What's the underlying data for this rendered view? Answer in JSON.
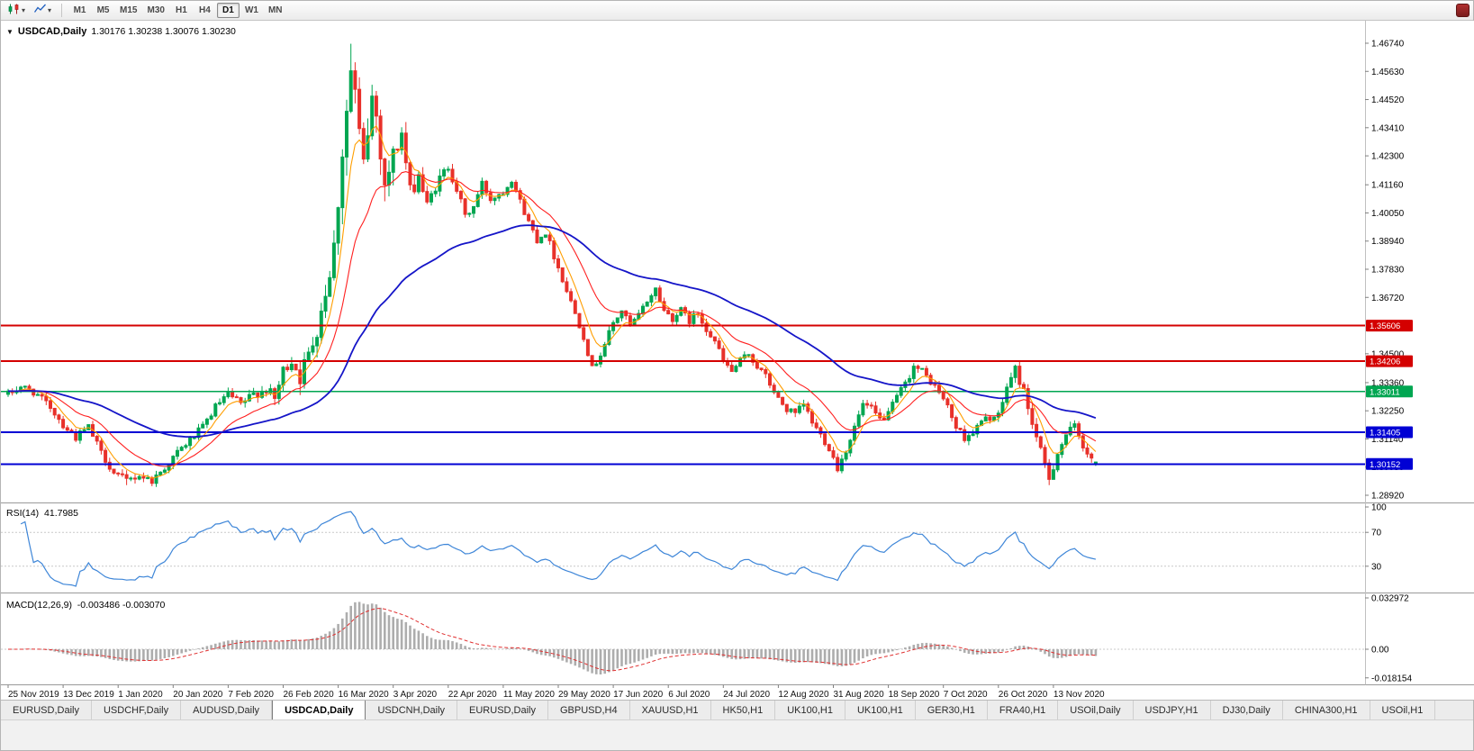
{
  "toolbar": {
    "timeframes": [
      "M1",
      "M5",
      "M15",
      "M30",
      "H1",
      "H4",
      "D1",
      "W1",
      "MN"
    ],
    "active_timeframe": "D1"
  },
  "chart": {
    "symbol": "USDCAD,Daily",
    "ohlc": "1.30176 1.30238 1.30076 1.30230"
  },
  "rsi": {
    "label": "RSI(14)",
    "value": "41.7985",
    "axis_labels": [
      "100",
      "70",
      "30"
    ],
    "levels": [
      70,
      30
    ],
    "line_color": "#3E86D8"
  },
  "macd": {
    "label": "MACD(12,26,9)",
    "values_text": "-0.003486 -0.003070",
    "axis_labels": [
      "0.032972",
      "0.00",
      "-0.018154"
    ],
    "histogram_color": "#ADADAD",
    "signal_color": "#E03030"
  },
  "price_axis": {
    "labels": [
      "1.46740",
      "1.45630",
      "1.44520",
      "1.43410",
      "1.42300",
      "1.41160",
      "1.40050",
      "1.38940",
      "1.37830",
      "1.36720",
      "1.34500",
      "1.33360",
      "1.32250",
      "1.31140",
      "1.30030",
      "1.28920"
    ],
    "badges": [
      {
        "text": "1.35606",
        "color": "#D40000"
      },
      {
        "text": "1.34206",
        "color": "#D40000"
      },
      {
        "text": "1.33011",
        "color": "#00A651"
      },
      {
        "text": "1.31405",
        "color": "#0000D4"
      },
      {
        "text": "1.30152",
        "color": "#0000D4"
      }
    ]
  },
  "time_axis": {
    "labels": [
      "25 Nov 2019",
      "13 Dec 2019",
      "1 Jan 2020",
      "20 Jan 2020",
      "7 Feb 2020",
      "26 Feb 2020",
      "16 Mar 2020",
      "3 Apr 2020",
      "22 Apr 2020",
      "11 May 2020",
      "29 May 2020",
      "17 Jun 2020",
      "6 Jul 2020",
      "24 Jul 2020",
      "12 Aug 2020",
      "31 Aug 2020",
      "18 Sep 2020",
      "7 Oct 2020",
      "26 Oct 2020",
      "13 Nov 2020"
    ],
    "candles_per_label": 13
  },
  "tabbar": {
    "items": [
      "EURUSD,Daily",
      "USDCHF,Daily",
      "AUDUSD,Daily",
      "USDCAD,Daily",
      "USDCNH,Daily",
      "EURUSD,Daily",
      "GBPUSD,H4",
      "XAUUSD,H1",
      "HK50,H1",
      "UK100,H1",
      "UK100,H1",
      "GER30,H1",
      "FRA40,H1",
      "USOil,Daily",
      "USDJPY,H1",
      "DJ30,Daily",
      "CHINA300,H1",
      "USOil,H1"
    ],
    "active_index": 3
  },
  "chart_data": {
    "type": "candlestick",
    "symbol": "USDCAD",
    "timeframe": "Daily",
    "visible_price_range": [
      1.2892,
      1.4674
    ],
    "current_bar": {
      "open": 1.30176,
      "high": 1.30238,
      "low": 1.30076,
      "close": 1.3023
    },
    "num_candles": 258,
    "candle_colors": {
      "up": "#00A651",
      "down": "#E8312A"
    },
    "price_anchors": [
      [
        0,
        1.329
      ],
      [
        3,
        1.332
      ],
      [
        6,
        1.33
      ],
      [
        10,
        1.324
      ],
      [
        13,
        1.317
      ],
      [
        16,
        1.312
      ],
      [
        19,
        1.316
      ],
      [
        22,
        1.306
      ],
      [
        25,
        1.298
      ],
      [
        28,
        1.295
      ],
      [
        31,
        1.297
      ],
      [
        34,
        1.295
      ],
      [
        37,
        1.3
      ],
      [
        40,
        1.306
      ],
      [
        43,
        1.311
      ],
      [
        46,
        1.316
      ],
      [
        49,
        1.324
      ],
      [
        52,
        1.329
      ],
      [
        55,
        1.325
      ],
      [
        58,
        1.329
      ],
      [
        61,
        1.331
      ],
      [
        63,
        1.327
      ],
      [
        65,
        1.338
      ],
      [
        67,
        1.343
      ],
      [
        69,
        1.336
      ],
      [
        71,
        1.344
      ],
      [
        73,
        1.356
      ],
      [
        75,
        1.37
      ],
      [
        77,
        1.387
      ],
      [
        79,
        1.425
      ],
      [
        81,
        1.456
      ],
      [
        82,
        1.447
      ],
      [
        83,
        1.43
      ],
      [
        84,
        1.419
      ],
      [
        86,
        1.446
      ],
      [
        87,
        1.439
      ],
      [
        89,
        1.412
      ],
      [
        91,
        1.423
      ],
      [
        93,
        1.432
      ],
      [
        95,
        1.408
      ],
      [
        97,
        1.416
      ],
      [
        99,
        1.403
      ],
      [
        101,
        1.411
      ],
      [
        104,
        1.419
      ],
      [
        106,
        1.41
      ],
      [
        108,
        1.399
      ],
      [
        110,
        1.403
      ],
      [
        112,
        1.412
      ],
      [
        114,
        1.406
      ],
      [
        117,
        1.409
      ],
      [
        119,
        1.414
      ],
      [
        121,
        1.405
      ],
      [
        123,
        1.397
      ],
      [
        125,
        1.39
      ],
      [
        127,
        1.393
      ],
      [
        130,
        1.379
      ],
      [
        132,
        1.37
      ],
      [
        134,
        1.361
      ],
      [
        136,
        1.352
      ],
      [
        138,
        1.339
      ],
      [
        140,
        1.345
      ],
      [
        143,
        1.357
      ],
      [
        145,
        1.362
      ],
      [
        147,
        1.356
      ],
      [
        149,
        1.36
      ],
      [
        151,
        1.366
      ],
      [
        153,
        1.3705
      ],
      [
        155,
        1.362
      ],
      [
        157,
        1.359
      ],
      [
        159,
        1.362
      ],
      [
        161,
        1.358
      ],
      [
        163,
        1.361
      ],
      [
        165,
        1.355
      ],
      [
        167,
        1.35
      ],
      [
        169,
        1.342
      ],
      [
        171,
        1.338
      ],
      [
        173,
        1.342
      ],
      [
        175,
        1.345
      ],
      [
        177,
        1.34
      ],
      [
        179,
        1.336
      ],
      [
        182,
        1.327
      ],
      [
        184,
        1.323
      ],
      [
        186,
        1.321
      ],
      [
        188,
        1.325
      ],
      [
        190,
        1.318
      ],
      [
        192,
        1.313
      ],
      [
        194,
        1.308
      ],
      [
        196,
        1.3
      ],
      [
        198,
        1.307
      ],
      [
        200,
        1.316
      ],
      [
        202,
        1.325
      ],
      [
        204,
        1.323
      ],
      [
        206,
        1.319
      ],
      [
        208,
        1.321
      ],
      [
        210,
        1.328
      ],
      [
        212,
        1.333
      ],
      [
        214,
        1.34
      ],
      [
        216,
        1.338
      ],
      [
        218,
        1.334
      ],
      [
        220,
        1.33
      ],
      [
        222,
        1.324
      ],
      [
        224,
        1.316
      ],
      [
        226,
        1.312
      ],
      [
        228,
        1.314
      ],
      [
        230,
        1.318
      ],
      [
        232,
        1.32
      ],
      [
        234,
        1.32
      ],
      [
        236,
        1.332
      ],
      [
        238,
        1.339
      ],
      [
        240,
        1.33
      ],
      [
        242,
        1.318
      ],
      [
        244,
        1.306
      ],
      [
        246,
        1.296
      ],
      [
        248,
        1.306
      ],
      [
        250,
        1.313
      ],
      [
        252,
        1.316
      ],
      [
        254,
        1.309
      ],
      [
        256,
        1.304
      ],
      [
        257,
        1.3023
      ]
    ],
    "moving_averages": [
      {
        "name": "fast",
        "color": "#FF9E00",
        "alpha": 0.28
      },
      {
        "name": "medium",
        "color": "#FF2020",
        "alpha": 0.11
      },
      {
        "name": "slow",
        "color": "#1515C8",
        "alpha": 0.034
      }
    ],
    "horizontal_lines": [
      {
        "price": 1.35606,
        "color": "#D40000",
        "width": 2
      },
      {
        "price": 1.34206,
        "color": "#D40000",
        "width": 2
      },
      {
        "price": 1.33011,
        "color": "#00A651",
        "width": 1.6
      },
      {
        "price": 1.31405,
        "color": "#0000D4",
        "width": 2
      },
      {
        "price": 1.30152,
        "color": "#0000D4",
        "width": 2
      }
    ],
    "indicators": {
      "rsi": {
        "period": 14,
        "current": 41.7985
      },
      "macd": {
        "fast": 12,
        "slow": 26,
        "signal": 9,
        "current_main": -0.003486,
        "current_signal": -0.00307,
        "visible_range": [
          -0.018154,
          0.032972
        ]
      }
    }
  }
}
